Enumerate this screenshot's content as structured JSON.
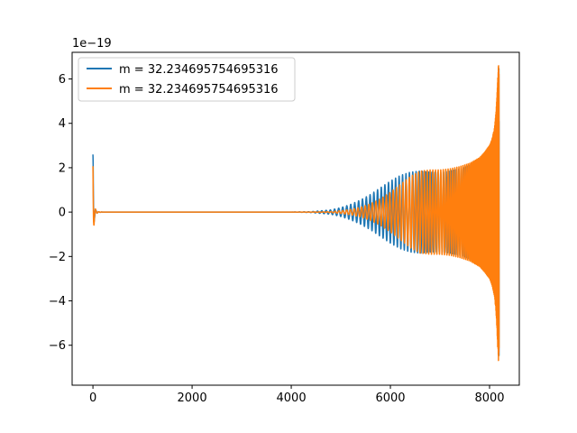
{
  "chart_data": {
    "type": "line",
    "title": "",
    "xlabel": "",
    "ylabel": "",
    "y_offset_label": "1e−19",
    "xlim": [
      -420,
      8600
    ],
    "ylim": [
      -7.8,
      7.2
    ],
    "x_ticks": [
      0,
      2000,
      4000,
      6000,
      8000
    ],
    "x_tick_labels": [
      "0",
      "2000",
      "4000",
      "6000",
      "8000"
    ],
    "y_ticks": [
      -6,
      -4,
      -2,
      0,
      2,
      4,
      6
    ],
    "y_tick_labels": [
      "−6",
      "−4",
      "−2",
      "0",
      "2",
      "4",
      "6"
    ],
    "grid": false,
    "legend_position": "upper-left",
    "series": [
      {
        "name": "m = 32.234695754695316",
        "color": "#1f77b4",
        "envelope_x": [
          0,
          4,
          8,
          15,
          30,
          60,
          100,
          200,
          4000,
          4400,
          4800,
          5000,
          5200,
          5400,
          5600,
          5800,
          6000,
          6200,
          6400,
          6600,
          6800,
          7000,
          7200,
          7400,
          7600,
          7800,
          7900,
          8000,
          8050,
          8100,
          8130,
          8150,
          8170,
          8180,
          8192
        ],
        "envelope_y": [
          2.6,
          2.4,
          1.6,
          0.8,
          0.3,
          0.08,
          0.02,
          0.0,
          0.0,
          0.02,
          0.1,
          0.2,
          0.35,
          0.55,
          0.8,
          1.1,
          1.4,
          1.65,
          1.8,
          1.85,
          1.8,
          1.8,
          1.85,
          1.95,
          2.1,
          2.35,
          2.55,
          2.85,
          3.1,
          3.6,
          4.2,
          4.8,
          5.8,
          6.5,
          6.5
        ],
        "oscillation_period": [
          60,
          60,
          60,
          60,
          60,
          60,
          60,
          60,
          95,
          90,
          85,
          82,
          80,
          78,
          76,
          74,
          72,
          70,
          68,
          65,
          62,
          58,
          52,
          46,
          38,
          28,
          22,
          16,
          12,
          9,
          7,
          6,
          5,
          4,
          4
        ]
      },
      {
        "name": "m = 32.234695754695316",
        "color": "#ff7f0e",
        "envelope_x": [
          0,
          4,
          8,
          15,
          30,
          60,
          100,
          200,
          4000,
          4400,
          4800,
          5000,
          5200,
          5400,
          5600,
          5800,
          6000,
          6200,
          6400,
          6600,
          6800,
          7000,
          7200,
          7400,
          7600,
          7800,
          7900,
          8000,
          8050,
          8100,
          8130,
          8150,
          8170,
          8180,
          8192
        ],
        "envelope_y": [
          2.6,
          2.4,
          1.6,
          0.8,
          0.3,
          0.08,
          0.02,
          0.0,
          0.0,
          0.0,
          0.02,
          0.06,
          0.12,
          0.22,
          0.38,
          0.6,
          0.9,
          1.25,
          1.6,
          1.85,
          1.9,
          1.9,
          1.95,
          2.05,
          2.2,
          2.45,
          2.7,
          3.0,
          3.3,
          3.8,
          4.5,
          5.3,
          6.4,
          7.1,
          6.5
        ],
        "oscillation_period": [
          60,
          60,
          60,
          60,
          60,
          60,
          60,
          60,
          88,
          84,
          80,
          78,
          76,
          74,
          72,
          70,
          68,
          66,
          63,
          60,
          56,
          52,
          46,
          40,
          32,
          24,
          18,
          13,
          10,
          8,
          6,
          5,
          4,
          4,
          4
        ]
      }
    ]
  }
}
